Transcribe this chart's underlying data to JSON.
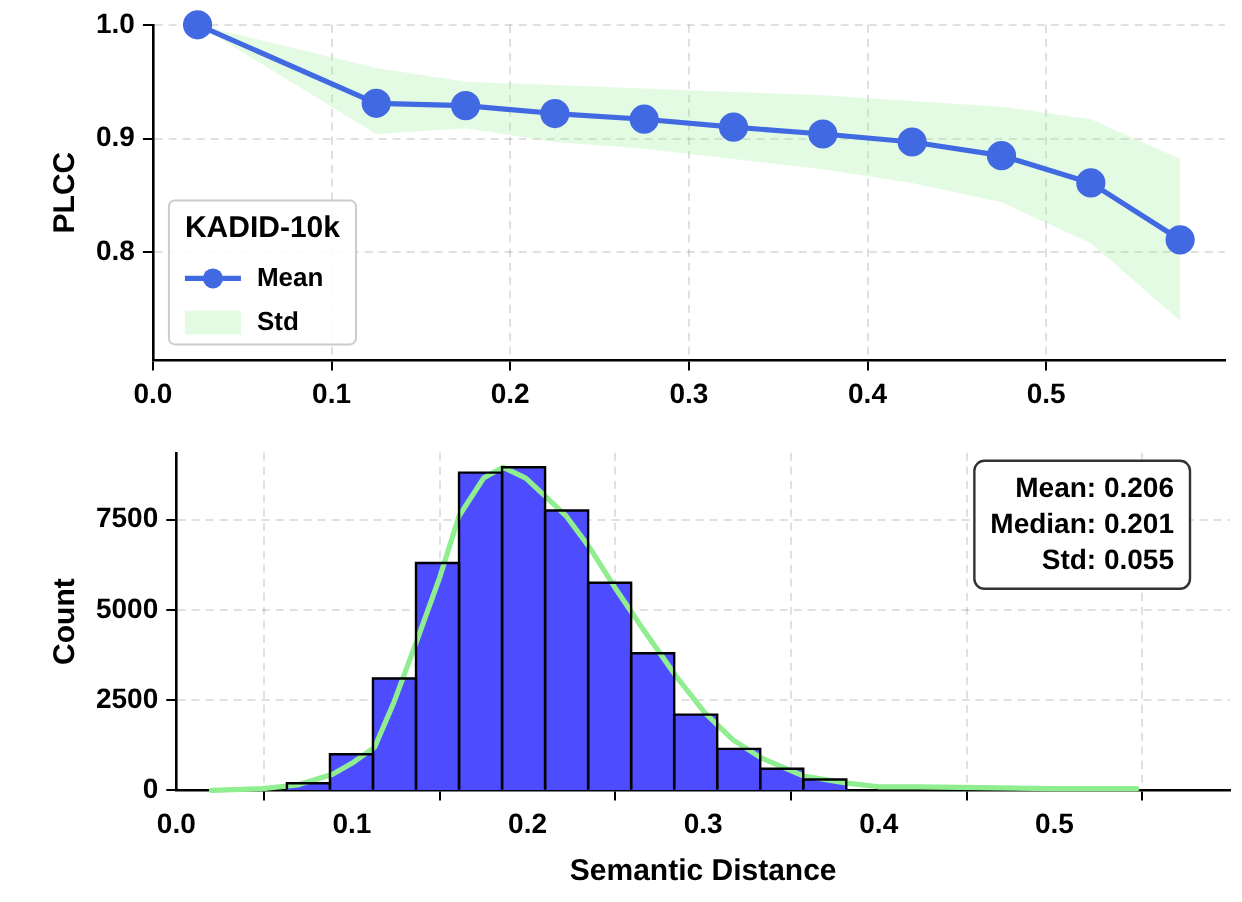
{
  "chart_data": [
    {
      "type": "line",
      "ylabel": "PLCC",
      "legend_title": "KADID-10k",
      "legend": "bottom left",
      "grid": true,
      "x": [
        0.025,
        0.125,
        0.175,
        0.225,
        0.275,
        0.325,
        0.375,
        0.425,
        0.475,
        0.525,
        0.575
      ],
      "xlim": [
        0,
        0.6
      ],
      "xticks": [
        {
          "value": 0,
          "label": "0.0"
        },
        0.1,
        0.2,
        0.3,
        0.4,
        0.5
      ],
      "ylim": [
        0.705,
        1.0
      ],
      "yticks": [
        0.8,
        0.9,
        {
          "value": 1,
          "label": "1.0"
        }
      ],
      "series": [
        {
          "name": "Mean",
          "color": "#4169e1",
          "marker": "circle",
          "values": [
            1.0,
            0.931,
            0.929,
            0.922,
            0.917,
            0.91,
            0.904,
            0.897,
            0.885,
            0.861,
            0.811
          ],
          "upper": [
            1.0,
            0.962,
            0.95,
            0.947,
            0.944,
            0.941,
            0.938,
            0.933,
            0.928,
            0.917,
            0.882
          ],
          "lower": [
            1.0,
            0.904,
            0.909,
            0.897,
            0.891,
            0.882,
            0.873,
            0.861,
            0.844,
            0.808,
            0.74
          ]
        },
        {
          "name": "Std",
          "type": "area",
          "color": "#90ee90",
          "values": [
            null,
            null,
            null,
            null,
            null,
            null,
            null,
            null,
            null,
            null,
            null
          ]
        }
      ]
    },
    {
      "type": "histogram",
      "xlabel": "Semantic Distance",
      "ylabel": "Count",
      "grid": true,
      "xlim": [
        0,
        0.6
      ],
      "xticks": [
        {
          "value": 0,
          "label": "0.0"
        },
        0.1,
        0.2,
        0.3,
        0.4,
        0.5
      ],
      "ylim": [
        0,
        9350
      ],
      "yticks": [
        0,
        2500,
        5000,
        7500
      ],
      "annotations": [
        "Mean: 0.206",
        "Median: 0.201",
        "Std: 0.055"
      ],
      "series": [
        {
          "color": "#4d4dff",
          "bins": [
            0.063,
            0.0875,
            0.112,
            0.1365,
            0.161,
            0.1855,
            0.21,
            0.2345,
            0.259,
            0.2835,
            0.308,
            0.3325,
            0.357,
            0.3815
          ],
          "values": [
            200,
            1000,
            3100,
            6300,
            8800,
            8950,
            7750,
            5750,
            3800,
            2100,
            1150,
            600,
            300
          ]
        },
        {
          "type": "line",
          "color": "#90ee90",
          "x": [
            0.02,
            0.049,
            0.069,
            0.089,
            0.1,
            0.113,
            0.124,
            0.137,
            0.15,
            0.161,
            0.175,
            0.186,
            0.199,
            0.21,
            0.222,
            0.235,
            0.25,
            0.266,
            0.284,
            0.301,
            0.317,
            0.333,
            0.357,
            0.382,
            0.4,
            0.423,
            0.498,
            0.547
          ],
          "values": [
            0,
            50,
            150,
            450,
            750,
            1200,
            2450,
            4150,
            5900,
            7600,
            8650,
            8950,
            8650,
            8150,
            7600,
            6750,
            5600,
            4450,
            3200,
            2150,
            1400,
            900,
            400,
            200,
            100,
            100,
            50,
            50
          ]
        }
      ]
    }
  ]
}
